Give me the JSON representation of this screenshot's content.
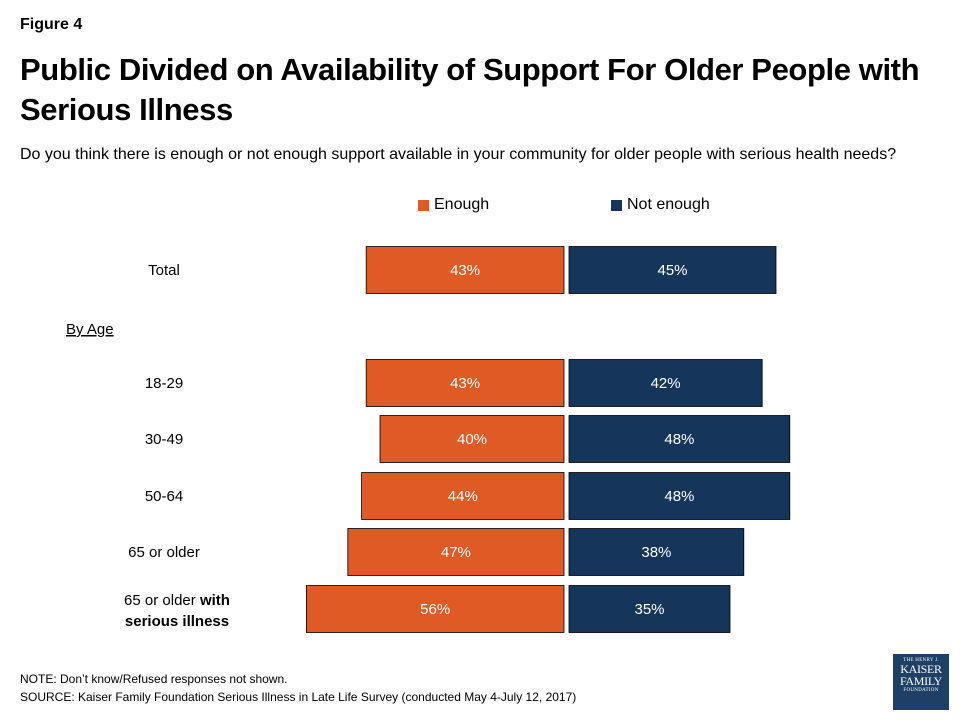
{
  "figure_label": "Figure 4",
  "title": "Public Divided on Availability of Support For Older People with Serious Illness",
  "subtitle": "Do you think there is enough or not enough support available in your community for older people with serious health needs?",
  "note": "NOTE: Don’t know/Refused responses not shown.",
  "source": "SOURCE: Kaiser Family Foundation Serious Illness in Late Life Survey (conducted May 4-July 12, 2017)",
  "logo": {
    "line1": "THE HENRY J.",
    "line2": "KAISER",
    "line3": "FAMILY",
    "line4": "FOUNDATION"
  },
  "colors": {
    "enough": "#e05a26",
    "not_enough": "#15365a"
  },
  "chart_data": {
    "type": "bar",
    "orientation": "horizontal-diverging",
    "series": [
      {
        "name": "Enough",
        "color": "#e05a26"
      },
      {
        "name": "Not enough",
        "color": "#15365a"
      }
    ],
    "legend_position": "top",
    "grid": false,
    "section_label": "By Age",
    "rows": [
      {
        "label": "Total",
        "enough": 43,
        "not_enough": 45,
        "enough_label": "43%",
        "not_enough_label": "45%"
      },
      {
        "label": "18-29",
        "enough": 43,
        "not_enough": 42,
        "enough_label": "43%",
        "not_enough_label": "42%"
      },
      {
        "label": "30-49",
        "enough": 40,
        "not_enough": 48,
        "enough_label": "40%",
        "not_enough_label": "48%"
      },
      {
        "label": "50-64",
        "enough": 44,
        "not_enough": 48,
        "enough_label": "44%",
        "not_enough_label": "48%"
      },
      {
        "label": "65 or older",
        "enough": 47,
        "not_enough": 38,
        "enough_label": "47%",
        "not_enough_label": "38%"
      },
      {
        "label_parts": [
          "65 or older ",
          "with",
          "serious illness"
        ],
        "enough": 56,
        "not_enough": 35,
        "enough_label": "56%",
        "not_enough_label": "35%"
      }
    ]
  }
}
